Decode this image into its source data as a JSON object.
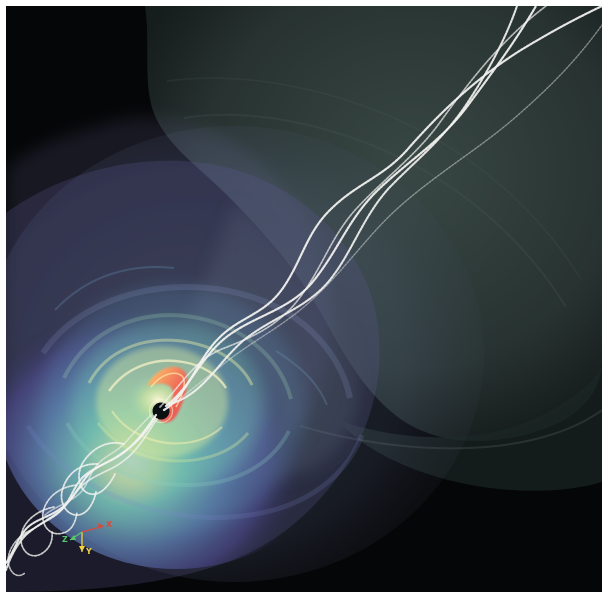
{
  "scene": {
    "background_color": "#050607",
    "frame_color": "#ffffff",
    "cloud_color": "#2b3a37",
    "disk_inner_color": "#f4ef9b",
    "disk_mid_color": "#67cdb2",
    "disk_outer_color": "#4a4f95",
    "jet_base_color": "#f07a59",
    "field_line_color": "#f2f2ef"
  },
  "axes": {
    "x": {
      "label": "X",
      "color": "#d84a3f"
    },
    "y": {
      "label": "Y",
      "color": "#f0d344"
    },
    "z": {
      "label": "Z",
      "color": "#55c86a"
    }
  }
}
